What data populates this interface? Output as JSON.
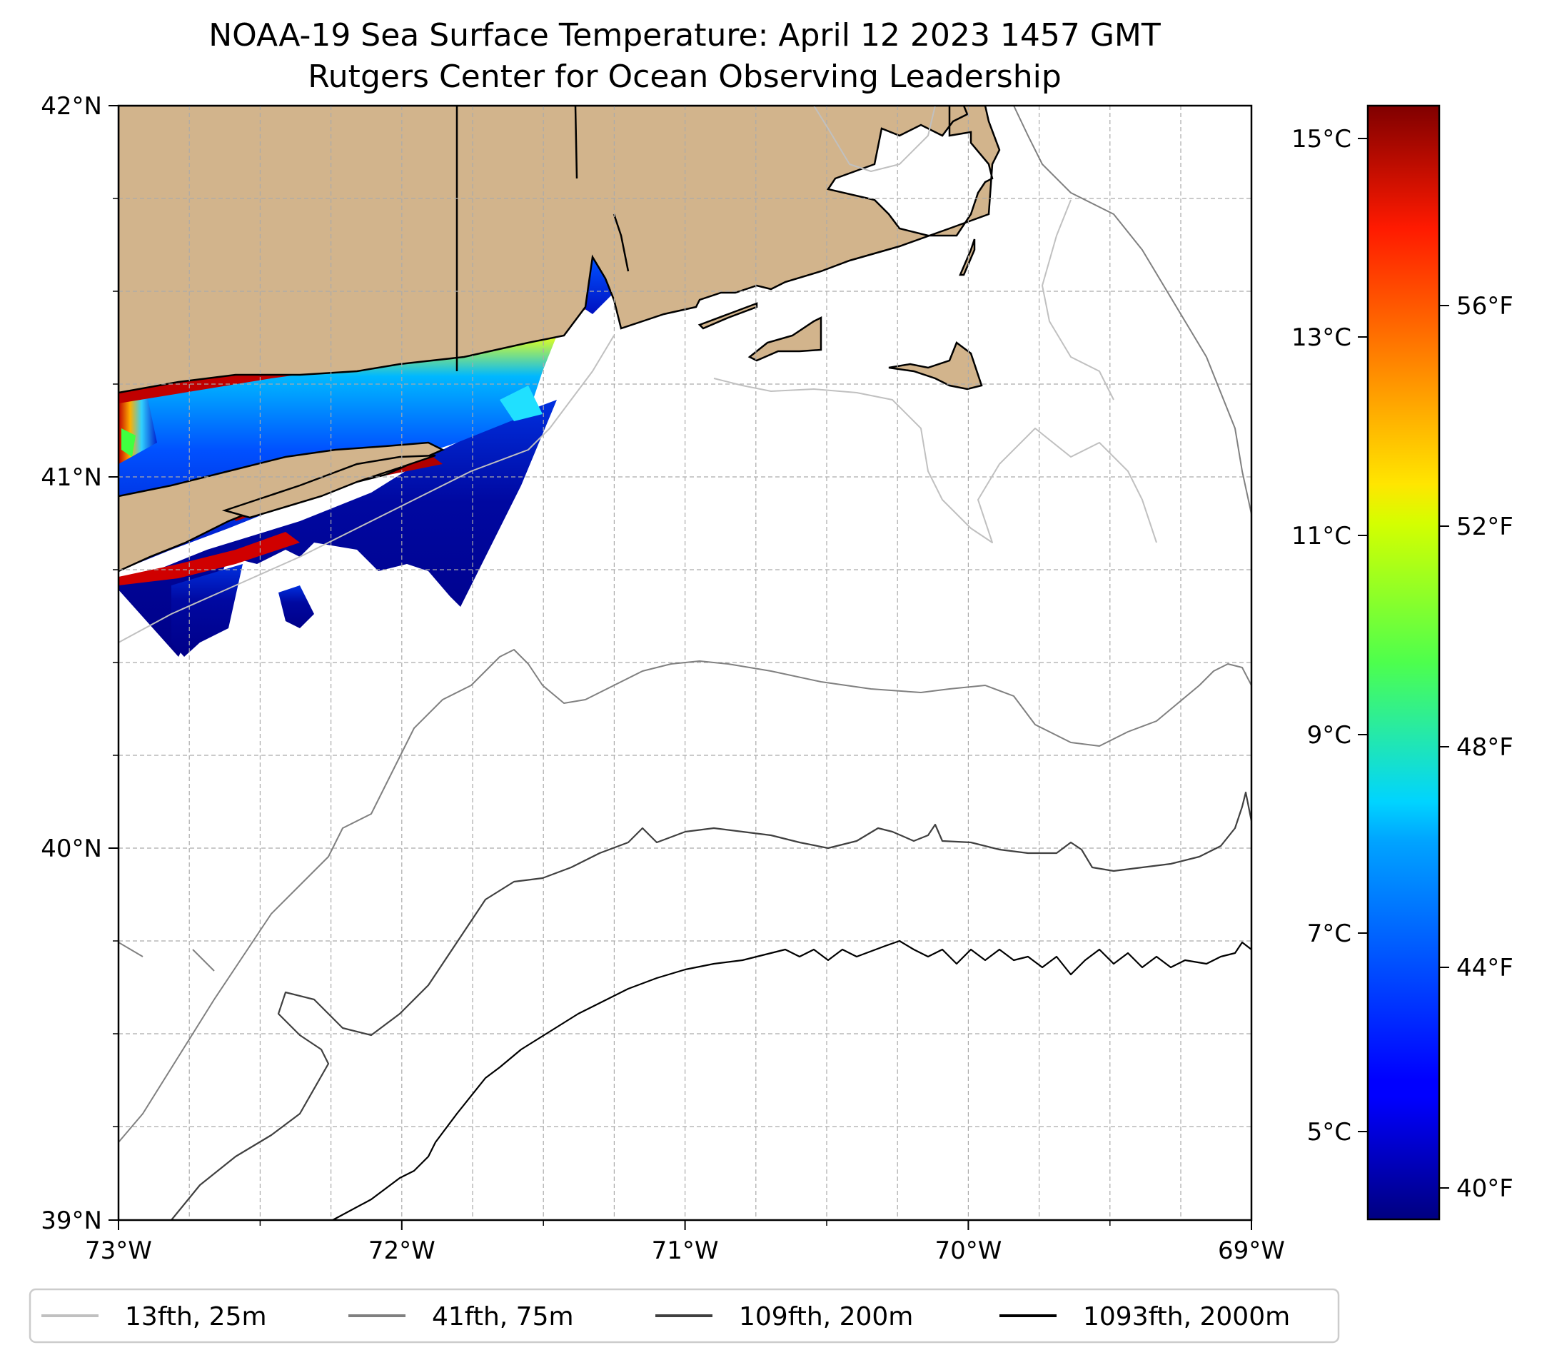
{
  "title_line1": "NOAA-19 Sea Surface Temperature: April 12 2023 1457 GMT",
  "title_line2": "Rutgers Center for Ocean Observing Leadership",
  "map": {
    "lat_ticks": [
      "42°N",
      "41°N",
      "40°N",
      "39°N"
    ],
    "lon_ticks": [
      "73°W",
      "72°W",
      "71°W",
      "70°W",
      "69°W"
    ],
    "land_color": "#d2b48c",
    "grid": "dashed"
  },
  "colorbar": {
    "colormap": "jet",
    "celsius_labels": [
      "15°C",
      "13°C",
      "11°C",
      "9°C",
      "7°C",
      "5°C"
    ],
    "fahrenheit_labels": [
      "56°F",
      "52°F",
      "48°F",
      "44°F",
      "40°F"
    ],
    "range_c": [
      4.3,
      15.3
    ]
  },
  "legend": [
    {
      "label": "13fth, 25m",
      "color": "#c0c0c0"
    },
    {
      "label": "41fth, 75m",
      "color": "#808080"
    },
    {
      "label": "109fth, 200m",
      "color": "#404040"
    },
    {
      "label": "1093fth, 2000m",
      "color": "#000000"
    }
  ]
}
